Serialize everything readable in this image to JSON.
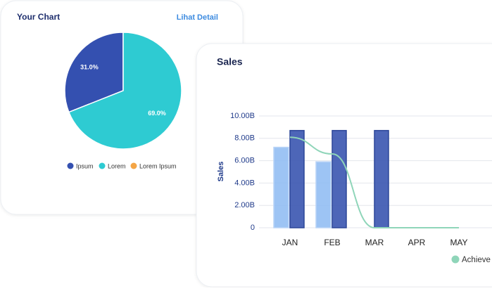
{
  "chart_data": [
    {
      "type": "pie",
      "title": "Your Chart",
      "action_label": "Lihat Detail",
      "categories": [
        "Ipsum",
        "Lorem",
        "Lorem Ipsum"
      ],
      "values": [
        31.0,
        69.0,
        0
      ],
      "value_labels": [
        "31.0%",
        "69.0%",
        null
      ],
      "colors": [
        "#3450b0",
        "#2ecbd2",
        "#f4a545"
      ],
      "legend": "bottom"
    },
    {
      "type": "bar",
      "title": "Sales",
      "ylabel": "Sales",
      "categories": [
        "JAN",
        "FEB",
        "MAR",
        "APR",
        "MAY"
      ],
      "ylim": [
        0,
        10
      ],
      "yticks": [
        0,
        {
          "value": 2,
          "label": "2.00B"
        },
        {
          "value": 4,
          "label": "4.00B"
        },
        {
          "value": 6,
          "label": "6.00B"
        },
        {
          "value": 8,
          "label": "8.00B"
        },
        {
          "value": 10,
          "label": "10.00B"
        }
      ],
      "grid": true,
      "series": [
        {
          "color": "#8cbaf2",
          "values": [
            7.2,
            5.9,
            null,
            null,
            null
          ]
        },
        {
          "color": "#3a55b0",
          "values": [
            8.7,
            8.7,
            8.7,
            null,
            null
          ]
        },
        {
          "name": "Achieve",
          "type": "line",
          "color": "#8fd5b9",
          "values": [
            8.1,
            6.6,
            0,
            0,
            0
          ]
        }
      ],
      "legend": "bottom-right"
    }
  ]
}
